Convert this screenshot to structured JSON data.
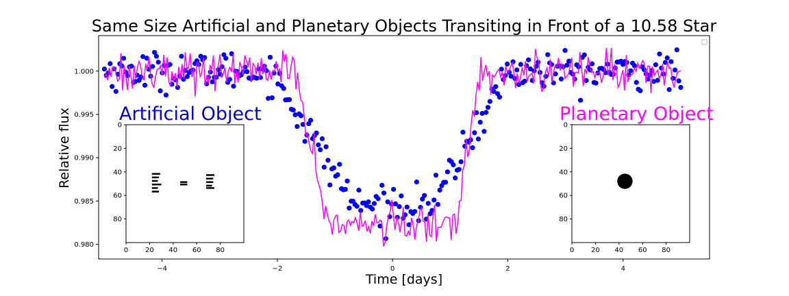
{
  "chart_data": {
    "type": "scatter",
    "title": "Same Size Artificial and Planetary Objects Transiting in Front of a 10.58 Star",
    "xlabel": "Time [days]",
    "ylabel": "Relative flux",
    "xlim": [
      -5.1,
      5.5
    ],
    "ylim": [
      0.9783,
      1.0041
    ],
    "x_ticks": [
      -4,
      -2,
      0,
      2,
      4
    ],
    "x_tick_labels": [
      "−4",
      "−2",
      "0",
      "2",
      "4"
    ],
    "y_ticks": [
      0.98,
      0.985,
      0.99,
      0.995,
      1.0
    ],
    "y_tick_labels": [
      "0.980",
      "0.985",
      "0.990",
      "0.995",
      "1.000"
    ],
    "grid": false,
    "legend": "top-right (empty)",
    "colors": {
      "artificial": "#0000ff",
      "planetary": "#ff00ff"
    },
    "series": [
      {
        "kind": "points",
        "color": "#0000ff",
        "model": {
          "baseline": 1.0,
          "depth": 0.0155,
          "ingress": [
            -2.1,
            -0.65
          ],
          "egress": [
            0.7,
            2.0
          ],
          "noise_sd": 0.0011,
          "x_range": [
            -5.0,
            5.0
          ],
          "n_points": 300
        }
      },
      {
        "kind": "line",
        "color": "#ff00ff",
        "model": {
          "baseline": 1.0,
          "depth": 0.0178,
          "ingress": [
            -1.7,
            -1.1
          ],
          "egress": [
            1.1,
            1.5
          ],
          "noise_sd": 0.0011,
          "x_range": [
            -5.0,
            5.0
          ],
          "n_points": 350
        }
      }
    ],
    "insets": [
      {
        "title": "Artificial Object",
        "title_color": "#0000cc",
        "xlim": [
          0,
          100
        ],
        "ylim": [
          100,
          0
        ],
        "x_ticks": [
          0,
          20,
          40,
          60,
          80
        ],
        "y_ticks": [
          0,
          20,
          40,
          60,
          80
        ],
        "shape": "bars",
        "bars": [
          [
            22,
            41,
            7,
            1.5
          ],
          [
            22,
            44,
            6,
            1.0
          ],
          [
            22,
            47,
            5,
            1.2
          ],
          [
            22,
            50,
            8,
            1.2
          ],
          [
            22,
            53,
            5,
            1.0
          ],
          [
            22,
            56,
            6,
            1.5
          ],
          [
            46,
            48,
            6,
            1.4
          ],
          [
            46,
            50,
            6,
            1.4
          ],
          [
            68,
            42,
            7,
            1.4
          ],
          [
            68,
            45,
            6,
            1.0
          ],
          [
            68,
            48,
            6,
            1.2
          ],
          [
            68,
            51,
            5,
            1.0
          ],
          [
            68,
            53,
            7,
            1.3
          ]
        ]
      },
      {
        "title": "Planetary Object",
        "title_color": "#ff00ff",
        "xlim": [
          0,
          100
        ],
        "ylim": [
          100,
          0
        ],
        "x_ticks": [
          0,
          20,
          40,
          60,
          80
        ],
        "y_ticks": [
          0,
          20,
          40,
          60,
          80
        ],
        "shape": "disk",
        "disk": {
          "cx": 45,
          "cy": 48,
          "r": 6.5
        }
      }
    ]
  }
}
